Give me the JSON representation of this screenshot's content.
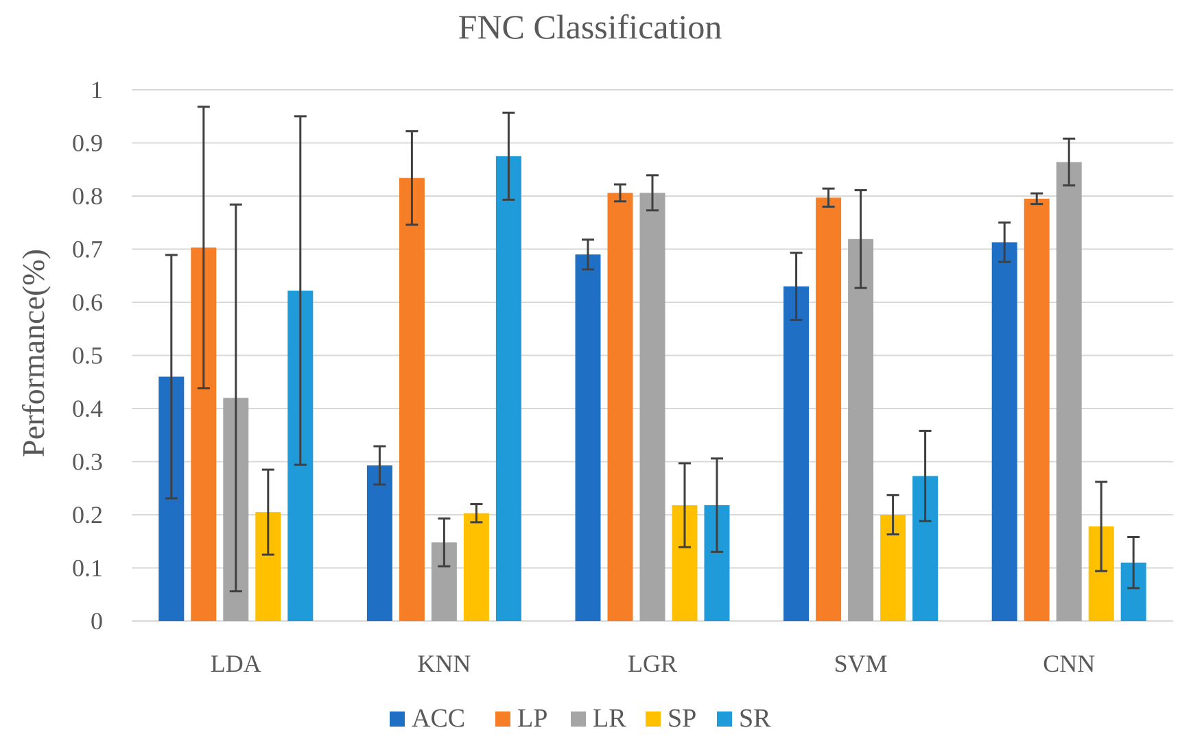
{
  "chart_data": {
    "type": "bar",
    "title": "FNC Classification",
    "xlabel": "",
    "ylabel": "Performance(%)",
    "ylim": [
      0,
      1
    ],
    "yticks": [
      "0",
      "0.1",
      "0.2",
      "0.3",
      "0.4",
      "0.5",
      "0.6",
      "0.7",
      "0.8",
      "0.9",
      "1"
    ],
    "yticks_values": [
      0,
      0.1,
      0.2,
      0.3,
      0.4,
      0.5,
      0.6,
      0.7,
      0.8,
      0.9,
      1
    ],
    "categories": [
      "LDA",
      "KNN",
      "LGR",
      "SVM",
      "CNN"
    ],
    "grid": true,
    "legend_position": "bottom",
    "series": [
      {
        "name": "ACC",
        "color": "#1f6fc5",
        "values": [
          0.46,
          0.293,
          0.69,
          0.63,
          0.713
        ],
        "errors": [
          0.229,
          0.036,
          0.028,
          0.063,
          0.037
        ]
      },
      {
        "name": "LP",
        "color": "#f57e27",
        "values": [
          0.703,
          0.834,
          0.806,
          0.797,
          0.795
        ],
        "errors": [
          0.265,
          0.088,
          0.016,
          0.017,
          0.01
        ]
      },
      {
        "name": "LR",
        "color": "#a5a5a5",
        "values": [
          0.42,
          0.148,
          0.806,
          0.719,
          0.864
        ],
        "errors": [
          0.364,
          0.045,
          0.033,
          0.092,
          0.044
        ]
      },
      {
        "name": "SP",
        "color": "#ffc000",
        "values": [
          0.205,
          0.203,
          0.218,
          0.2,
          0.178
        ],
        "errors": [
          0.08,
          0.017,
          0.079,
          0.037,
          0.084
        ]
      },
      {
        "name": "SR",
        "color": "#1f9bd9",
        "values": [
          0.622,
          0.875,
          0.218,
          0.273,
          0.11
        ],
        "errors": [
          0.328,
          0.082,
          0.088,
          0.085,
          0.048
        ]
      }
    ]
  }
}
